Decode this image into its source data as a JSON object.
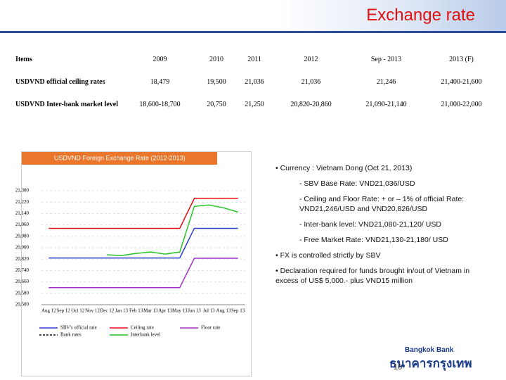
{
  "header": {
    "title": "Exchange rate"
  },
  "table": {
    "columns": [
      "Items",
      "2009",
      "2010",
      "2011",
      "2012",
      "Sep - 2013",
      "2013 (F)"
    ],
    "rows": [
      [
        "USDVND official ceiling rates",
        "18,479",
        "19,500",
        "21,036",
        "21,036",
        "21,246",
        "21,400-21,600"
      ],
      [
        "USDVND Inter-bank market level",
        "18,600-18,700",
        "20,750",
        "21,250",
        "20,820-20,860",
        "21,090-21,140",
        "21,000-22,000"
      ]
    ]
  },
  "chart_data": {
    "type": "line",
    "title": "USDVND Foreign Exchange Rate (2012-2013)",
    "categories": [
      "Aug 12",
      "Sep 12",
      "Oct 12",
      "Nov 12",
      "Dec 12",
      "Jan 13",
      "Feb 13",
      "Mar 13",
      "Apr 13",
      "May 13",
      "Jun 13",
      "Jul 13",
      "Aug 13",
      "Sep 13"
    ],
    "ylim": [
      20500,
      21300
    ],
    "yticks": [
      {
        "value": 20500,
        "label": "20,500"
      },
      {
        "value": 20580,
        "label": "20,580"
      },
      {
        "value": 20660,
        "label": "20,660"
      },
      {
        "value": 20740,
        "label": "20,740"
      },
      {
        "value": 20820,
        "label": "20,820"
      },
      {
        "value": 20900,
        "label": "20,900"
      },
      {
        "value": 20980,
        "label": "20,980"
      },
      {
        "value": 21060,
        "label": "21,060"
      },
      {
        "value": 21140,
        "label": "21,140"
      },
      {
        "value": 21220,
        "label": "21,220"
      },
      {
        "value": 21300,
        "label": "21,300"
      }
    ],
    "grid": true,
    "series": [
      {
        "name": "SBV's official rate",
        "color": "#2b3fd0",
        "values": [
          20828,
          20828,
          20828,
          20828,
          20828,
          20828,
          20828,
          20828,
          20828,
          20828,
          21036,
          21036,
          21036,
          21036
        ]
      },
      {
        "name": "Ceiling rate",
        "color": "#e01010",
        "values": [
          21036,
          21036,
          21036,
          21036,
          21036,
          21036,
          21036,
          21036,
          21036,
          21036,
          21246,
          21246,
          21246,
          21246
        ]
      },
      {
        "name": "Floor rate",
        "color": "#a030c8",
        "values": [
          20620,
          20620,
          20620,
          20620,
          20620,
          20620,
          20620,
          20620,
          20620,
          20620,
          20826,
          20826,
          20826,
          20826
        ]
      },
      {
        "name": "Bank rates",
        "color": "#111111",
        "values": [
          null,
          null,
          null,
          null,
          null,
          null,
          null,
          null,
          null,
          null,
          null,
          null,
          null,
          null
        ]
      },
      {
        "name": "Interbank level",
        "color": "#22c422",
        "values": [
          null,
          null,
          null,
          null,
          20850,
          20845,
          20860,
          20870,
          20855,
          20870,
          21190,
          21200,
          21180,
          21150
        ]
      }
    ]
  },
  "notes": [
    "• Currency : Vietnam Dong (Oct 21, 2013)",
    "- SBV Base Rate: VND21,036/USD",
    "- Ceiling and Floor Rate: + or – 1% of official Rate: VND21,246/USD and VND20,826/USD",
    "- Inter-bank level: VND21,080-21,120/ USD",
    "- Free Market Rate: VND21,130-21,180/ USD",
    "• FX is controlled strictly by SBV",
    "• Declaration required for funds brought in/out of Vietnam in excess of US$ 5,000.- plus VND15 million"
  ],
  "footer": {
    "bank": "Bangkok Bank",
    "bank_thai": "ธนาคารกรุงเทพ",
    "page": "10"
  }
}
